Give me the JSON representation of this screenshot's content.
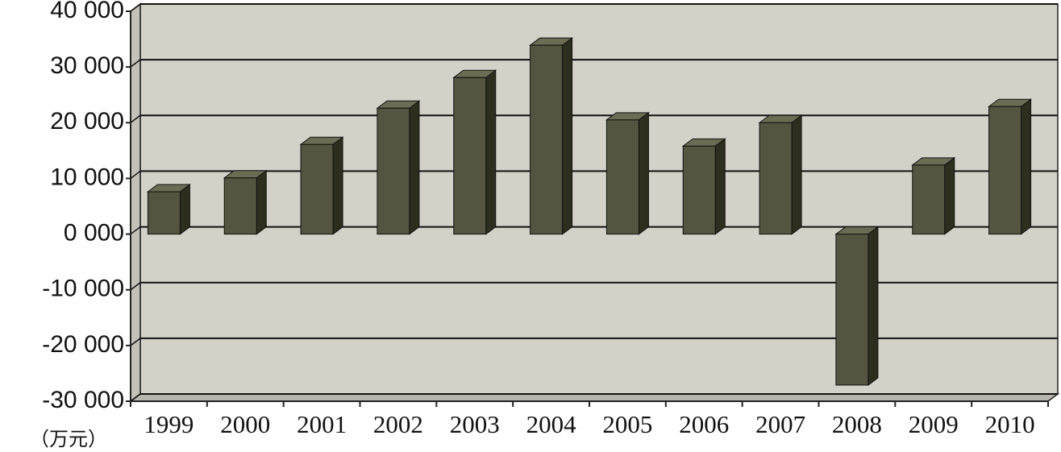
{
  "chart_data": {
    "type": "bar3d",
    "categories": [
      "1999",
      "2000",
      "2001",
      "2002",
      "2003",
      "2004",
      "2005",
      "2006",
      "2007",
      "2008",
      "2009",
      "2010"
    ],
    "values": [
      7600,
      10100,
      16100,
      22600,
      28100,
      33900,
      20500,
      15800,
      20000,
      -27100,
      12400,
      22900
    ],
    "color": "#545440",
    "ylim": [
      -30000,
      40000
    ],
    "yticks": [
      {
        "value": 40000,
        "label": "40 000"
      },
      {
        "value": 30000,
        "label": "30 000"
      },
      {
        "value": 20000,
        "label": "20 000"
      },
      {
        "value": 10000,
        "label": "10 000"
      },
      {
        "value": 0,
        "label": "0 000"
      },
      {
        "value": -10000,
        "label": "-10 000"
      },
      {
        "value": -20000,
        "label": "-20 000"
      },
      {
        "value": -30000,
        "label": "-30 000"
      }
    ],
    "unit_label": "（万元）",
    "grid": true
  }
}
